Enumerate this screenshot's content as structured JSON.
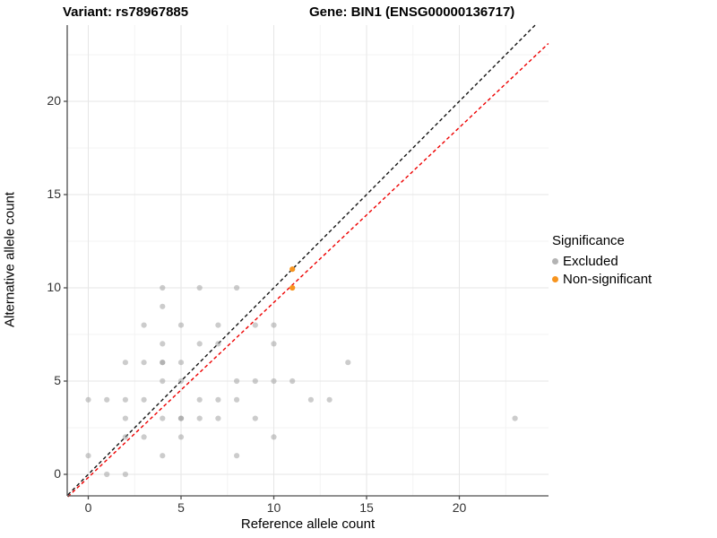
{
  "chart_data": {
    "type": "scatter",
    "title_left": "Variant: rs78967885",
    "title_right": "Gene: BIN1 (ENSG00000136717)",
    "xlabel": "Reference allele count",
    "ylabel": "Alternative allele count",
    "xlim": [
      -1.1,
      24.8
    ],
    "ylim": [
      -1.2,
      24.1
    ],
    "xticks": [
      0,
      5,
      10,
      15,
      20
    ],
    "yticks": [
      0,
      5,
      10,
      15,
      20
    ],
    "grid": "major-and-minor",
    "legend": {
      "title": "Significance",
      "position": "right",
      "items": [
        {
          "label": "Excluded",
          "color": "#9a9a9a"
        },
        {
          "label": "Non-significant",
          "color": "#F7941E"
        }
      ]
    },
    "series": [
      {
        "name": "Excluded",
        "color": "#9a9a9a",
        "opacity": 0.5,
        "points": [
          [
            1,
            0
          ],
          [
            2,
            0
          ],
          [
            0,
            1
          ],
          [
            4,
            1
          ],
          [
            8,
            1
          ],
          [
            2,
            2
          ],
          [
            3,
            2
          ],
          [
            5,
            2
          ],
          [
            10,
            2
          ],
          [
            2,
            3
          ],
          [
            4,
            3
          ],
          [
            5,
            3
          ],
          [
            5,
            3
          ],
          [
            6,
            3
          ],
          [
            7,
            3
          ],
          [
            9,
            3
          ],
          [
            23,
            3
          ],
          [
            0,
            4
          ],
          [
            1,
            4
          ],
          [
            2,
            4
          ],
          [
            3,
            4
          ],
          [
            6,
            4
          ],
          [
            7,
            4
          ],
          [
            8,
            4
          ],
          [
            12,
            4
          ],
          [
            13,
            4
          ],
          [
            4,
            5
          ],
          [
            5,
            5
          ],
          [
            8,
            5
          ],
          [
            9,
            5
          ],
          [
            10,
            5
          ],
          [
            11,
            5
          ],
          [
            2,
            6
          ],
          [
            3,
            6
          ],
          [
            4,
            6
          ],
          [
            4,
            6
          ],
          [
            5,
            6
          ],
          [
            14,
            6
          ],
          [
            4,
            7
          ],
          [
            6,
            7
          ],
          [
            7,
            7
          ],
          [
            10,
            7
          ],
          [
            3,
            8
          ],
          [
            5,
            8
          ],
          [
            7,
            8
          ],
          [
            9,
            8
          ],
          [
            10,
            8
          ],
          [
            4,
            9
          ],
          [
            4,
            10
          ],
          [
            6,
            10
          ],
          [
            8,
            10
          ]
        ]
      },
      {
        "name": "Non-significant",
        "color": "#F7941E",
        "opacity": 1,
        "points": [
          [
            11,
            10
          ],
          [
            11,
            11
          ]
        ]
      }
    ],
    "lines": [
      {
        "name": "identity-line",
        "color": "#141414",
        "dashed": true,
        "x1": -1.1,
        "y1": -1.1,
        "x2": 24.1,
        "y2": 24.1
      },
      {
        "name": "fit-line",
        "color": "#EE0000",
        "dashed": true,
        "x1": -1.1,
        "y1": -1.2,
        "x2": 24.8,
        "y2": 23.1
      }
    ],
    "style": {
      "grid_major": "#e6e6e6",
      "grid_minor": "#f3f3f3",
      "axis_line": "#4d4d4d",
      "tick_label": "#333333",
      "background": "#ffffff"
    }
  }
}
